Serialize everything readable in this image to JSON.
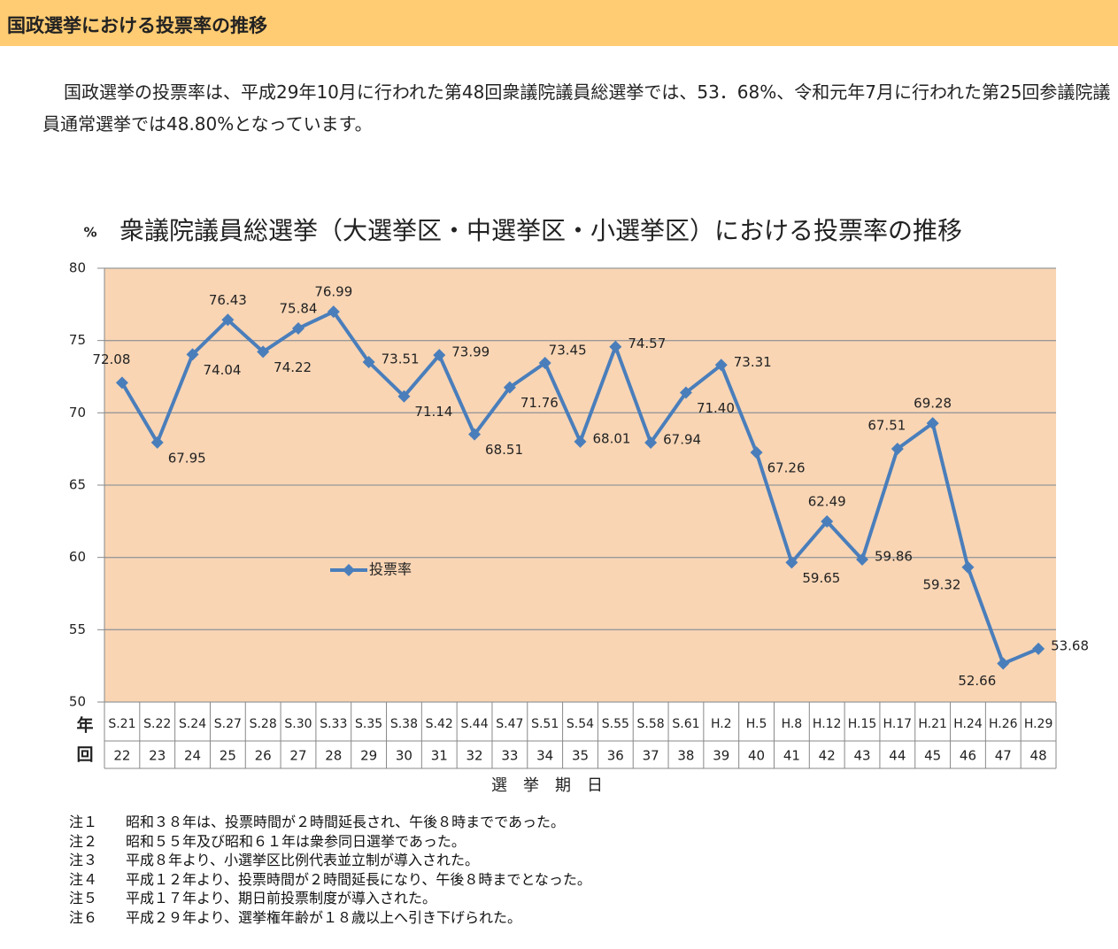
{
  "header": {
    "title": "国政選挙における投票率の推移"
  },
  "paragraph": "国政選挙の投票率は、平成29年10月に行われた第48回衆議院議員総選挙では、53．68%、令和元年7月に行われた第25回参議院議員通常選挙では48.80%となっています。",
  "chart_data": {
    "type": "line",
    "title": "衆議院議員総選挙（大選挙区・中選挙区・小選挙区）における投票率の推移",
    "y_unit": "%",
    "x_label": "選　挙　期　日",
    "row_labels": [
      "年",
      "回"
    ],
    "categories": [
      "S.21",
      "S.22",
      "S.24",
      "S.27",
      "S.28",
      "S.30",
      "S.33",
      "S.35",
      "S.38",
      "S.42",
      "S.44",
      "S.47",
      "S.51",
      "S.54",
      "S.55",
      "S.58",
      "S.61",
      "H.2",
      "H.5",
      "H.8",
      "H.12",
      "H.15",
      "H.17",
      "H.21",
      "H.24",
      "H.26",
      "H.29"
    ],
    "sessions": [
      22,
      23,
      24,
      25,
      26,
      27,
      28,
      29,
      30,
      31,
      32,
      33,
      34,
      35,
      36,
      37,
      38,
      39,
      40,
      41,
      42,
      43,
      44,
      45,
      46,
      47,
      48
    ],
    "series": [
      {
        "name": "投票率",
        "color": "#4a7ebb",
        "values": [
          72.08,
          67.95,
          74.04,
          76.43,
          74.22,
          75.84,
          76.99,
          73.51,
          71.14,
          73.99,
          68.51,
          71.76,
          73.45,
          68.01,
          74.57,
          67.94,
          71.4,
          73.31,
          67.26,
          59.65,
          62.49,
          59.86,
          67.51,
          69.28,
          59.32,
          52.66,
          53.68
        ],
        "value_labels": [
          "72.08",
          "67.95",
          "74.04",
          "76.43",
          "74.22",
          "75.84",
          "76.99",
          "73.51",
          "71.14",
          "73.99",
          "68.51",
          "71.76",
          "73.45",
          "68.01",
          "74.57",
          "67.94",
          "71.40",
          "73.31",
          "67.26",
          "59.65",
          "62.49",
          "59.86",
          "67.51",
          "69.28",
          "59.32",
          "52.66",
          "53.68"
        ]
      }
    ],
    "ylim": [
      50,
      80
    ],
    "yticks": [
      50,
      55,
      60,
      65,
      70,
      75,
      80
    ],
    "grid": true,
    "background": "#f9d5b4"
  },
  "notes": [
    {
      "label": "注１",
      "text": "昭和３８年は、投票時間が２時間延長され、午後８時までであった。"
    },
    {
      "label": "注２",
      "text": "昭和５５年及び昭和６１年は衆参同日選挙であった。"
    },
    {
      "label": "注３",
      "text": "平成８年より、小選挙区比例代表並立制が導入された。"
    },
    {
      "label": "注４",
      "text": "平成１２年より、投票時間が２時間延長になり、午後８時までとなった。"
    },
    {
      "label": "注５",
      "text": "平成１７年より、期日前投票制度が導入された。"
    },
    {
      "label": "注６",
      "text": "平成２９年より、選挙権年齢が１８歳以上へ引き下げられた。"
    }
  ]
}
